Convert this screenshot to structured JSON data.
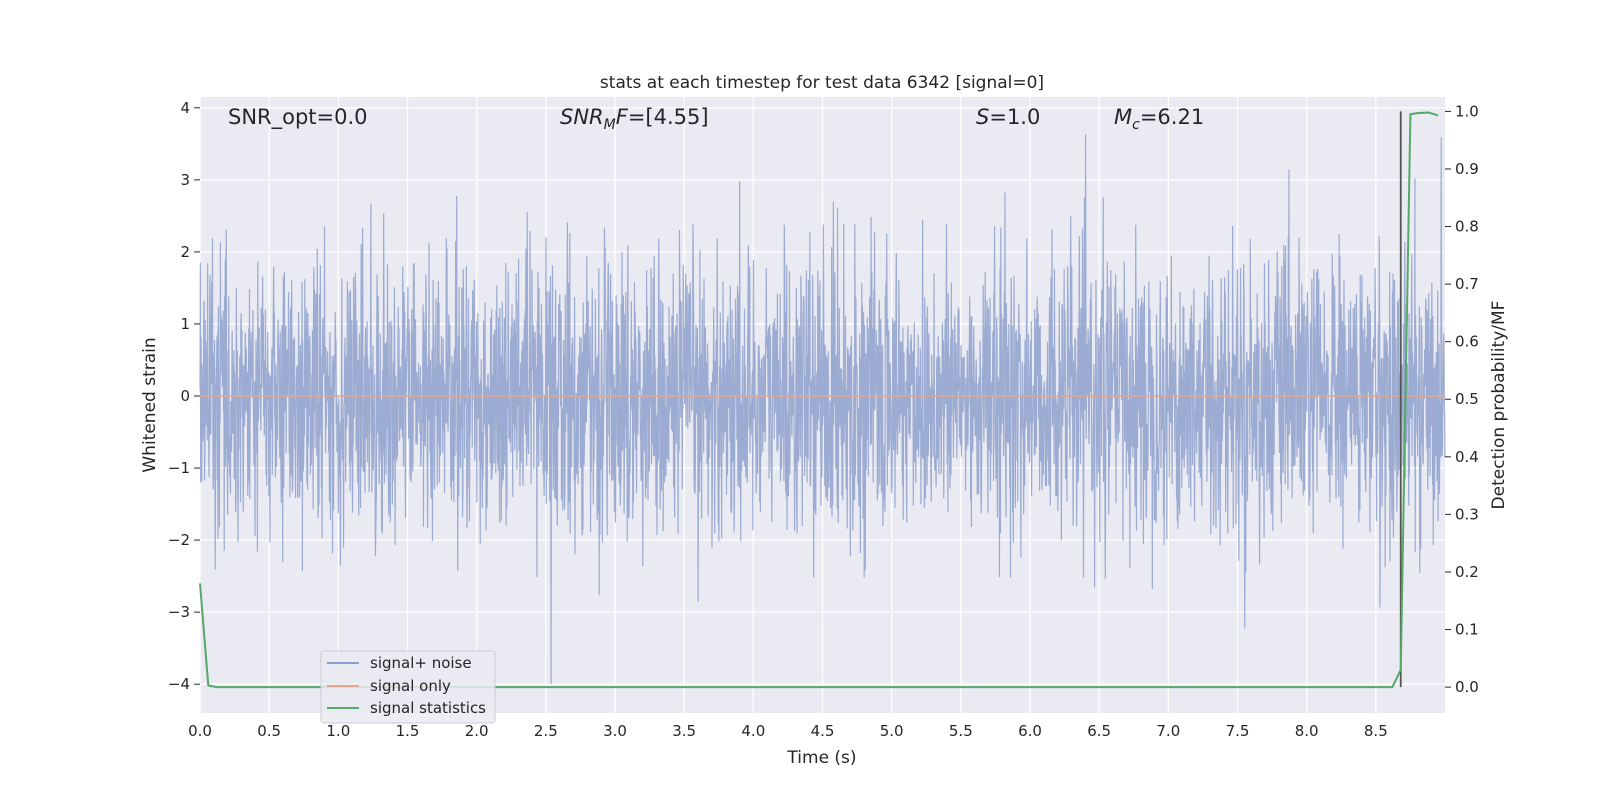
{
  "chart_data": {
    "type": "line",
    "title": "stats at each timestep for test data 6342 [signal=0]",
    "xlabel": "Time (s)",
    "ylabel": "Whitened strain",
    "y2label": "Detection probability/MF",
    "xlim": [
      0.0,
      9.0
    ],
    "ylim": [
      -4.4,
      4.15
    ],
    "y2lim": [
      -0.045,
      1.025
    ],
    "x_ticks": [
      "0.0",
      "0.5",
      "1.0",
      "1.5",
      "2.0",
      "2.5",
      "3.0",
      "3.5",
      "4.0",
      "4.5",
      "5.0",
      "5.5",
      "6.0",
      "6.5",
      "7.0",
      "7.5",
      "8.0",
      "8.5"
    ],
    "y_ticks": [
      "4",
      "3",
      "2",
      "1",
      "0",
      "−1",
      "−2",
      "−3",
      "−4"
    ],
    "y2_ticks": [
      "1.0",
      "0.9",
      "0.8",
      "0.7",
      "0.6",
      "0.5",
      "0.4",
      "0.3",
      "0.2",
      "0.1",
      "0.0"
    ],
    "grid": true,
    "legend_position": "lower-left",
    "annotations": {
      "snr_opt": "SNR_opt=0.0",
      "snr_mf_main": "SNR",
      "snr_mf_sub": "M",
      "snr_mf_rest": "F",
      "snr_mf_value": "=[4.55]",
      "s_symbol": "S",
      "s_value": "=1.0",
      "mc_symbol": "M",
      "mc_sub": "c",
      "mc_value": "=6.21"
    },
    "series": [
      {
        "name": "signal+ noise",
        "color": "#8da0cb",
        "description_kind": "noise",
        "amplitude_std": 0.95,
        "x_range": [
          0.0,
          9.0
        ]
      },
      {
        "name": "signal only",
        "color": "#e5a58a",
        "x": [
          0.0,
          9.0
        ],
        "y": [
          0.0,
          0.0
        ]
      },
      {
        "name": "signal statistics",
        "color": "#55a868",
        "axis": "right",
        "x": [
          0.0,
          0.06,
          0.12,
          0.5,
          1.0,
          2.0,
          3.0,
          4.0,
          5.0,
          6.0,
          7.0,
          8.0,
          8.62,
          8.68,
          8.75,
          8.8,
          8.88,
          8.95
        ],
        "y": [
          0.18,
          0.003,
          0.0,
          0.0,
          0.0,
          0.0,
          0.0,
          0.0,
          0.0,
          0.0,
          0.0,
          0.0,
          0.0,
          0.03,
          0.995,
          0.997,
          0.998,
          0.993
        ]
      }
    ],
    "vertical_marker": {
      "x": 8.68,
      "color": "#555555"
    },
    "colors": {
      "plot_background": "#eaeaf2",
      "grid": "#ffffff"
    }
  }
}
